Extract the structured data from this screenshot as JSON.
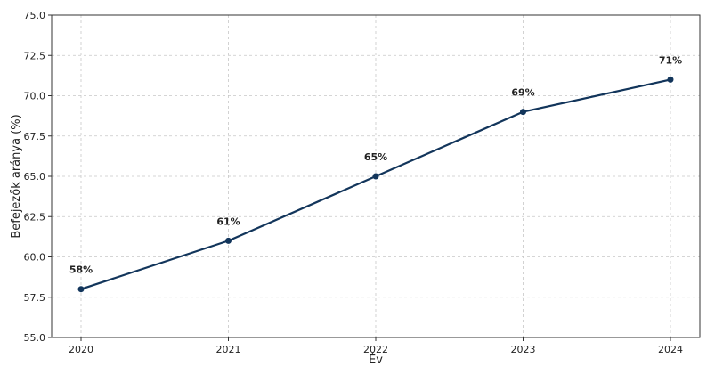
{
  "chart_data": {
    "type": "line",
    "title": "",
    "xlabel": "Év",
    "ylabel": "Befejezők aránya (%)",
    "categories": [
      "2020",
      "2021",
      "2022",
      "2023",
      "2024"
    ],
    "series": [
      {
        "values": [
          58,
          61,
          65,
          69,
          71
        ],
        "labels": [
          "58%",
          "61%",
          "65%",
          "69%",
          "71%"
        ],
        "color": "#12355b"
      }
    ],
    "ylim": [
      55.0,
      75.0
    ],
    "yticks": [
      "55.0",
      "57.5",
      "60.0",
      "62.5",
      "65.0",
      "67.5",
      "70.0",
      "72.5",
      "75.0"
    ],
    "grid": true,
    "legend": "none"
  }
}
